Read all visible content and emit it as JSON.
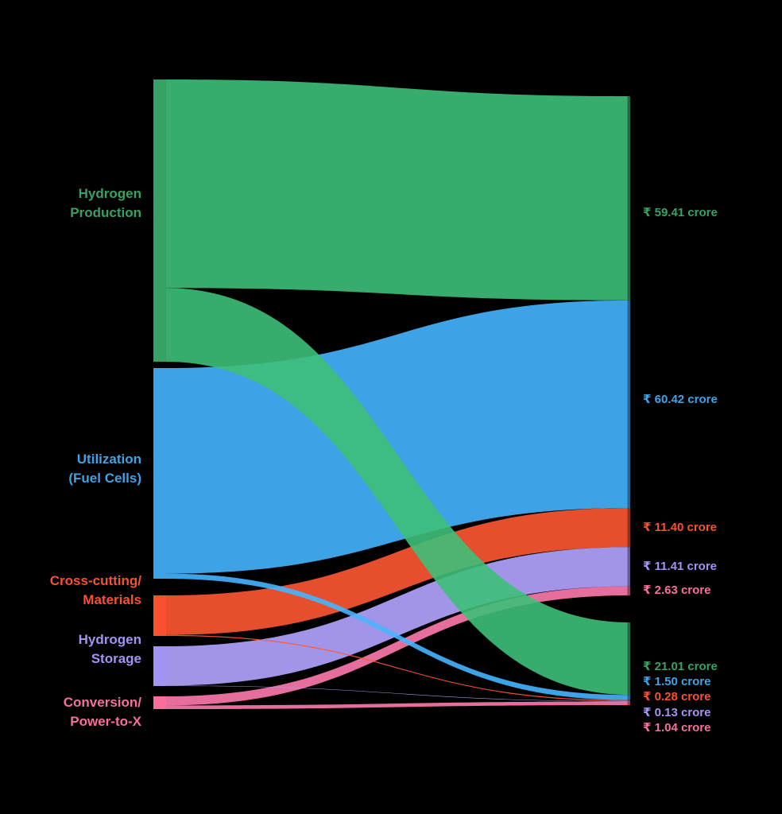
{
  "chart_data": {
    "type": "sankey",
    "title": "",
    "unit": "crore (₹)",
    "background": "#000000",
    "sources": [
      {
        "name": "hydrogen-production",
        "label_lines": [
          "Hydrogen",
          "Production"
        ],
        "color": "#37a164",
        "bright": "#3dbf78",
        "total": 80.42
      },
      {
        "name": "utilization-fuel-cells",
        "label_lines": [
          "Utilization",
          "(Fuel Cells)"
        ],
        "color": "#3ea3e6",
        "bright": "#45b5ff",
        "total": 61.92
      },
      {
        "name": "cross-cutting-materials",
        "label_lines": [
          "Cross-cutting/",
          "Materials"
        ],
        "color": "#fa502d",
        "bright": "#ff5832",
        "total": 11.68
      },
      {
        "name": "hydrogen-storage",
        "label_lines": [
          "Hydrogen",
          "Storage"
        ],
        "color": "#a294f3",
        "bright": "#b4a4ff",
        "total": 11.54
      },
      {
        "name": "conversion-power-to-x",
        "label_lines": [
          "Conversion/",
          "Power-to-X"
        ],
        "color": "#fa6e9b",
        "bright": "#ff7aad",
        "total": 3.67
      }
    ],
    "targets": [
      {
        "name": "target-top",
        "total": 145.27
      },
      {
        "name": "target-bottom",
        "total": 23.96
      }
    ],
    "links": [
      {
        "source": 0,
        "target": 0,
        "value": 59.41,
        "label": "₹ 59.41 crore"
      },
      {
        "source": 1,
        "target": 0,
        "value": 60.42,
        "label": "₹ 60.42 crore"
      },
      {
        "source": 2,
        "target": 0,
        "value": 11.4,
        "label": "₹ 11.40 crore"
      },
      {
        "source": 3,
        "target": 0,
        "value": 11.41,
        "label": "₹ 11.41 crore"
      },
      {
        "source": 4,
        "target": 0,
        "value": 2.63,
        "label": "₹ 2.63 crore"
      },
      {
        "source": 0,
        "target": 1,
        "value": 21.01,
        "label": "₹ 21.01 crore"
      },
      {
        "source": 1,
        "target": 1,
        "value": 1.5,
        "label": "₹ 1.50 crore"
      },
      {
        "source": 2,
        "target": 1,
        "value": 0.28,
        "label": "₹ 0.28 crore"
      },
      {
        "source": 3,
        "target": 1,
        "value": 0.13,
        "label": "₹ 0.13 crore"
      },
      {
        "source": 4,
        "target": 1,
        "value": 1.04,
        "label": "₹ 1.04 crore"
      }
    ]
  }
}
